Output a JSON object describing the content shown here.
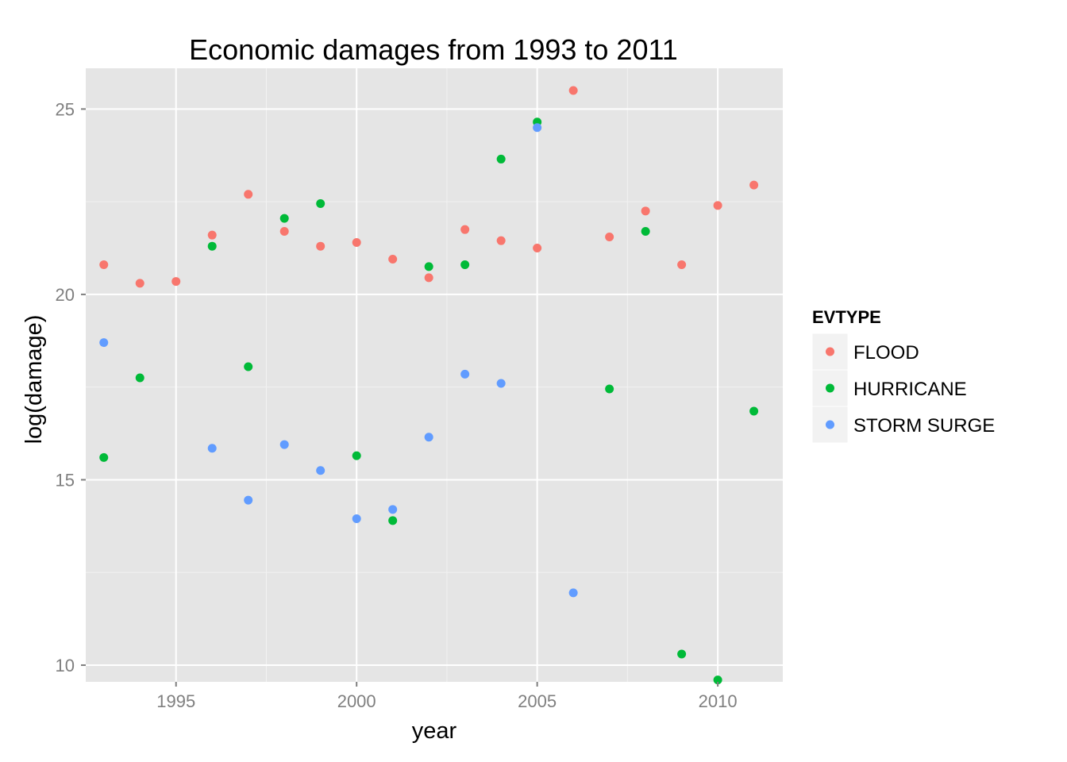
{
  "chart_data": {
    "type": "scatter",
    "title": "Economic damages from 1993 to 2011",
    "xlabel": "year",
    "ylabel": "log(damage)",
    "xlim": [
      1992.5,
      2011.8
    ],
    "ylim": [
      9.55,
      26.1
    ],
    "x_ticks": [
      1995,
      2000,
      2005,
      2010
    ],
    "y_ticks": [
      10,
      15,
      20,
      25
    ],
    "grid": true,
    "legend": {
      "title": "EVTYPE",
      "position": "right"
    },
    "series": [
      {
        "name": "FLOOD",
        "color": "#F8766D",
        "points": [
          [
            1993,
            20.8
          ],
          [
            1994,
            20.3
          ],
          [
            1995,
            20.35
          ],
          [
            1996,
            21.6
          ],
          [
            1997,
            22.7
          ],
          [
            1998,
            21.7
          ],
          [
            1999,
            21.3
          ],
          [
            2000,
            21.4
          ],
          [
            2001,
            20.95
          ],
          [
            2002,
            20.45
          ],
          [
            2003,
            21.75
          ],
          [
            2004,
            21.45
          ],
          [
            2005,
            21.25
          ],
          [
            2006,
            25.5
          ],
          [
            2007,
            21.55
          ],
          [
            2008,
            22.25
          ],
          [
            2009,
            20.8
          ],
          [
            2010,
            22.4
          ],
          [
            2011,
            22.95
          ]
        ]
      },
      {
        "name": "HURRICANE",
        "color": "#00BA38",
        "points": [
          [
            1993,
            15.6
          ],
          [
            1994,
            17.75
          ],
          [
            1996,
            21.3
          ],
          [
            1997,
            18.05
          ],
          [
            1998,
            22.05
          ],
          [
            1999,
            22.45
          ],
          [
            2000,
            15.65
          ],
          [
            2001,
            13.9
          ],
          [
            2002,
            20.75
          ],
          [
            2003,
            20.8
          ],
          [
            2004,
            23.65
          ],
          [
            2005,
            24.65
          ],
          [
            2007,
            17.45
          ],
          [
            2008,
            21.7
          ],
          [
            2009,
            10.3
          ],
          [
            2010,
            9.6
          ],
          [
            2011,
            16.85
          ]
        ]
      },
      {
        "name": "STORM SURGE",
        "color": "#619CFF",
        "points": [
          [
            1993,
            18.7
          ],
          [
            1996,
            15.85
          ],
          [
            1997,
            14.45
          ],
          [
            1998,
            15.95
          ],
          [
            1999,
            15.25
          ],
          [
            2000,
            13.95
          ],
          [
            2001,
            14.2
          ],
          [
            2002,
            16.15
          ],
          [
            2003,
            17.85
          ],
          [
            2004,
            17.6
          ],
          [
            2005,
            24.5
          ],
          [
            2006,
            11.95
          ]
        ]
      }
    ]
  }
}
